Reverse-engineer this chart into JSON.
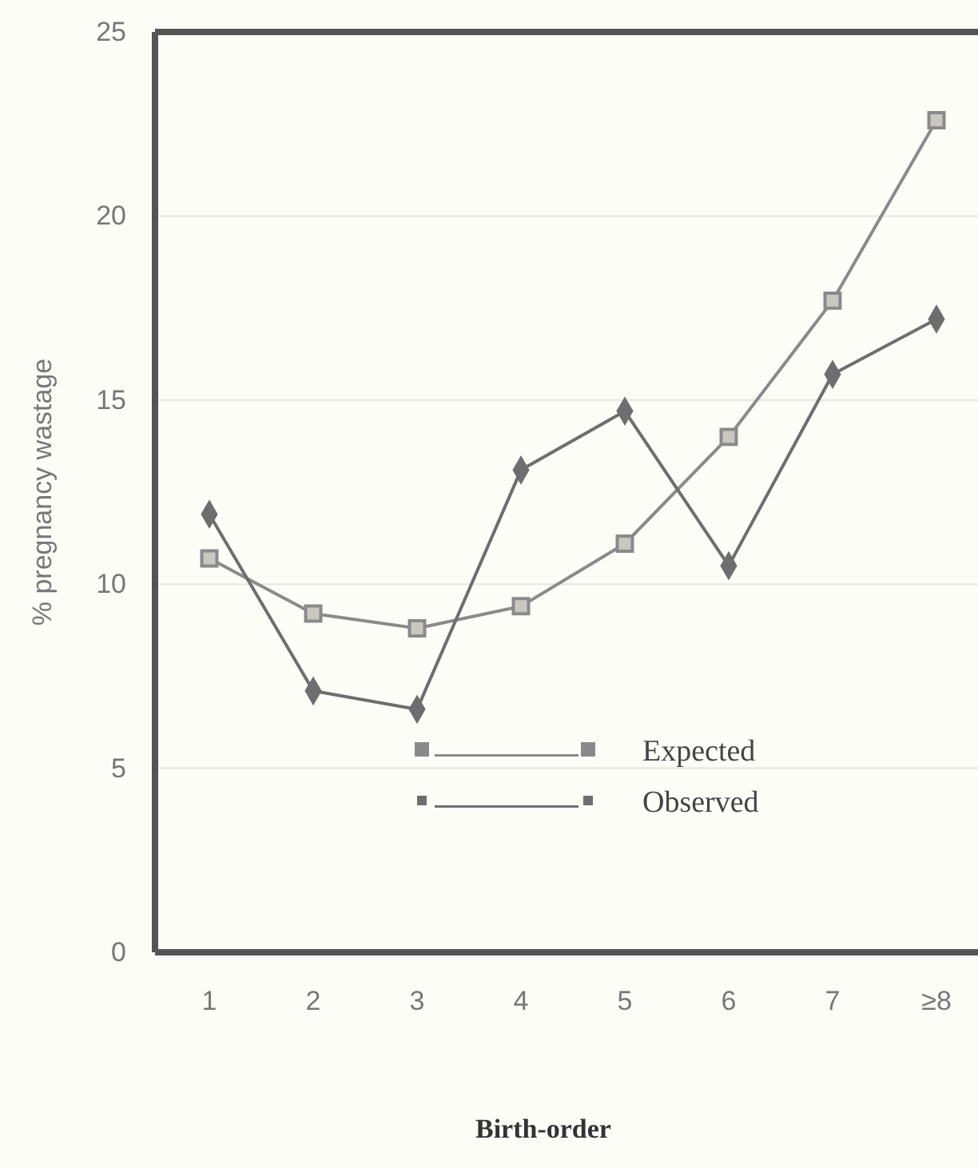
{
  "chart_data": {
    "type": "line",
    "xlabel": "Birth-order",
    "ylabel": "% pregnancy wastage",
    "categories": [
      "1",
      "2",
      "3",
      "4",
      "5",
      "6",
      "7",
      "≥8"
    ],
    "series": [
      {
        "name": "Expected",
        "color": "#8a8a8a",
        "marker": "square",
        "values": [
          10.7,
          9.2,
          8.8,
          9.4,
          11.1,
          14.0,
          17.7,
          22.6
        ]
      },
      {
        "name": "Observed",
        "color": "#6e6e6e",
        "marker": "diamond",
        "values": [
          11.9,
          7.1,
          6.6,
          13.1,
          14.7,
          10.5,
          15.7,
          17.2
        ]
      }
    ],
    "ylim": [
      0,
      25
    ],
    "yticks": [
      0,
      5,
      10,
      15,
      20,
      25
    ],
    "grid": "y",
    "legend": "bottom"
  }
}
